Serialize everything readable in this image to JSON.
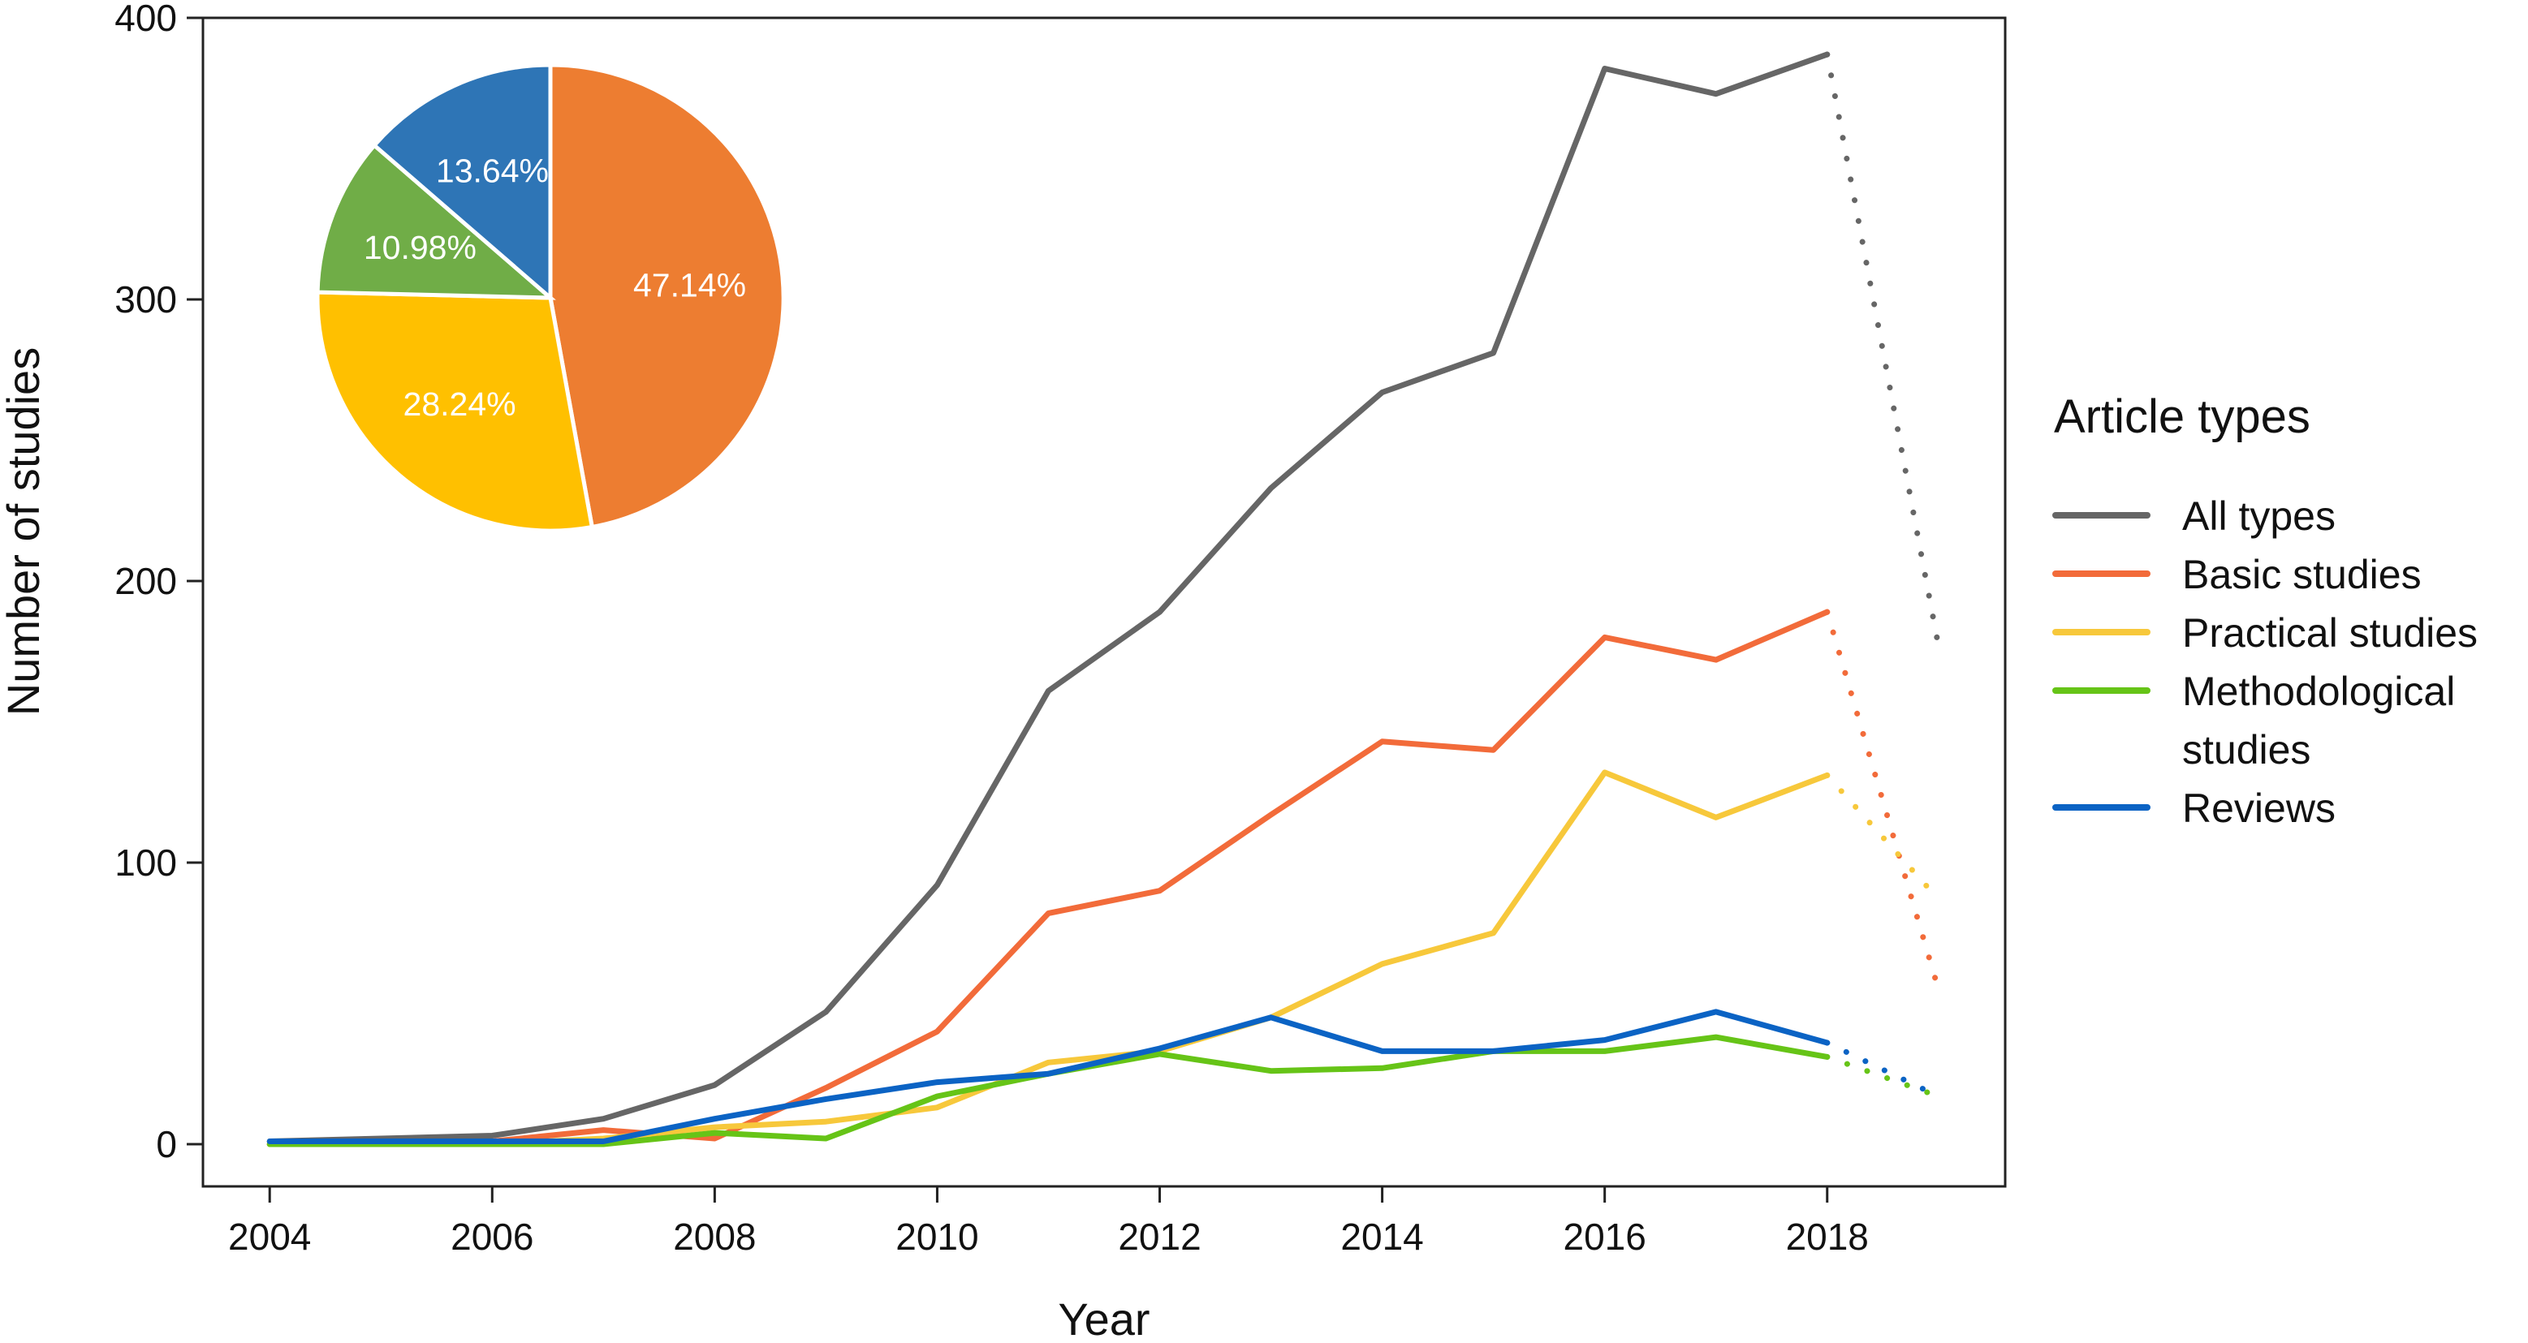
{
  "chart_data": {
    "type": "line",
    "title": "",
    "xlabel": "Year",
    "ylabel": "Number of studies",
    "xlim": [
      2003.4,
      2019.6
    ],
    "ylim": [
      -15,
      400
    ],
    "x_ticks": [
      "2004",
      "2006",
      "2008",
      "2010",
      "2012",
      "2014",
      "2016",
      "2018"
    ],
    "y_ticks": [
      "0",
      "100",
      "200",
      "300",
      "400"
    ],
    "x": [
      2004,
      2005,
      2006,
      2007,
      2008,
      2009,
      2010,
      2011,
      2012,
      2013,
      2014,
      2015,
      2016,
      2017,
      2018
    ],
    "projected_x": [
      2018,
      2019
    ],
    "legend": {
      "title": "Article types",
      "position": "right"
    },
    "series": [
      {
        "name": "All types",
        "color": "#666666",
        "values": [
          1,
          2,
          3,
          9,
          21,
          47,
          92,
          161,
          189,
          233,
          267,
          281,
          382,
          373,
          387
        ],
        "projected": [
          387,
          177
        ]
      },
      {
        "name": "Basic studies",
        "color": "#F26B3A",
        "values": [
          0,
          1,
          1,
          5,
          2,
          20,
          40,
          82,
          90,
          117,
          143,
          140,
          180,
          172,
          189
        ],
        "projected": [
          189,
          55
        ]
      },
      {
        "name": "Practical studies",
        "color": "#F7C83B",
        "values": [
          0,
          0,
          0,
          2,
          6,
          8,
          13,
          29,
          33,
          45,
          64,
          75,
          132,
          116,
          131
        ],
        "projected": [
          131,
          87
        ]
      },
      {
        "name": "Methodological\nstudies",
        "color": "#66C417",
        "values": [
          0,
          0,
          0,
          0,
          4,
          2,
          17,
          25,
          32,
          26,
          27,
          33,
          33,
          38,
          31
        ],
        "projected": [
          31,
          17
        ]
      },
      {
        "name": "Reviews",
        "color": "#0B63C4",
        "values": [
          1,
          1,
          1,
          1,
          9,
          16,
          22,
          25,
          34,
          45,
          33,
          33,
          37,
          47,
          36
        ],
        "projected": [
          36,
          17
        ]
      }
    ],
    "inset_pie": {
      "type": "pie",
      "start": "top",
      "direction": "clockwise",
      "slices": [
        {
          "label": "47.14%",
          "value": 47.14,
          "color": "#ED7D31"
        },
        {
          "label": "28.24%",
          "value": 28.24,
          "color": "#FFC000"
        },
        {
          "label": "10.98%",
          "value": 10.98,
          "color": "#70AD47"
        },
        {
          "label": "13.64%",
          "value": 13.64,
          "color": "#2E75B6"
        }
      ]
    }
  }
}
